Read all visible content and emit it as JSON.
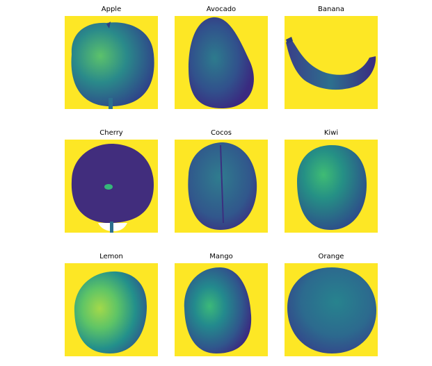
{
  "colors": {
    "background": "#fde725",
    "dark": "#3b2884",
    "mid": "#2c6f8e",
    "teal": "#21918c",
    "light": "#35b779"
  },
  "panels": [
    {
      "title": "Apple",
      "shape": "apple"
    },
    {
      "title": "Avocado",
      "shape": "avocado"
    },
    {
      "title": "Banana",
      "shape": "banana"
    },
    {
      "title": "Cherry",
      "shape": "cherry"
    },
    {
      "title": "Cocos",
      "shape": "cocos"
    },
    {
      "title": "Kiwi",
      "shape": "kiwi"
    },
    {
      "title": "Lemon",
      "shape": "lemon"
    },
    {
      "title": "Mango",
      "shape": "mango"
    },
    {
      "title": "Orange",
      "shape": "orange"
    }
  ]
}
